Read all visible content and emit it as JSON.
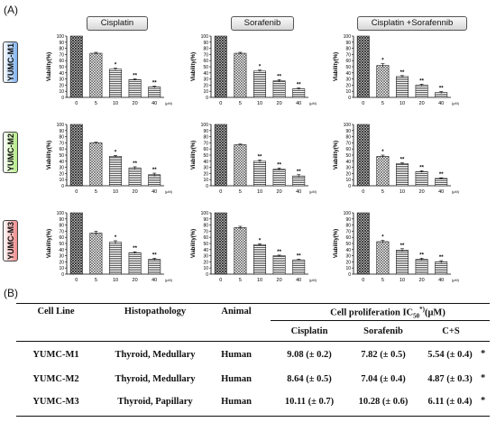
{
  "panel_a_label": "(A)",
  "panel_b_label": "(B)",
  "columns": [
    "Cisplatin",
    "Sorafenib",
    "Cisplatin +Sorafennib"
  ],
  "rows": [
    "YUMC-M1",
    "YUMC-M2",
    "YUMC-M3"
  ],
  "row_colors": [
    "#7fb3f0",
    "#b4ec86",
    "#f08a8a"
  ],
  "chart_data": [
    {
      "type": "bar",
      "row": "YUMC-M1",
      "drug": "Cisplatin",
      "categories": [
        "0",
        "5",
        "10",
        "20",
        "40"
      ],
      "values": [
        100,
        72,
        46,
        29,
        17
      ],
      "errors": [
        0,
        1.5,
        1.5,
        1.5,
        1.5
      ],
      "significance": [
        "",
        "",
        "*",
        "**",
        "**"
      ],
      "ylabel": "Viability(%)",
      "ylim": [
        0,
        100
      ],
      "yticks": [
        0,
        10,
        20,
        30,
        40,
        50,
        60,
        70,
        80,
        90,
        100
      ],
      "unit_label": "(μM)"
    },
    {
      "type": "bar",
      "row": "YUMC-M1",
      "drug": "Sorafenib",
      "categories": [
        "0",
        "5",
        "10",
        "20",
        "40"
      ],
      "values": [
        100,
        72,
        43,
        27,
        14
      ],
      "errors": [
        0,
        1.5,
        1.5,
        2,
        1.5
      ],
      "significance": [
        "",
        "",
        "*",
        "**",
        "**"
      ],
      "ylabel": "Viability(%)",
      "ylim": [
        0,
        100
      ],
      "yticks": [
        0,
        10,
        20,
        30,
        40,
        50,
        60,
        70,
        80,
        90,
        100
      ],
      "unit_label": "(μM)"
    },
    {
      "type": "bar",
      "row": "YUMC-M1",
      "drug": "Cisplatin +Sorafennib",
      "categories": [
        "0",
        "5",
        "10",
        "20",
        "40"
      ],
      "values": [
        100,
        52,
        34,
        20,
        8
      ],
      "errors": [
        0,
        3,
        1.5,
        1.5,
        1.5
      ],
      "significance": [
        "",
        "*",
        "**",
        "**",
        "**"
      ],
      "ylabel": "Viability(%)",
      "ylim": [
        0,
        100
      ],
      "yticks": [
        0,
        10,
        20,
        30,
        40,
        50,
        60,
        70,
        80,
        90,
        100
      ],
      "unit_label": "(μM)"
    },
    {
      "type": "bar",
      "row": "YUMC-M2",
      "drug": "Cisplatin",
      "categories": [
        "0",
        "5",
        "10",
        "20",
        "40"
      ],
      "values": [
        100,
        70,
        48,
        29,
        18
      ],
      "errors": [
        0,
        1,
        1.5,
        2,
        2.5
      ],
      "significance": [
        "",
        "",
        "*",
        "**",
        "**"
      ],
      "ylabel": "Viability(%)",
      "ylim": [
        0,
        100
      ],
      "yticks": [
        0,
        10,
        20,
        30,
        40,
        50,
        60,
        70,
        80,
        90,
        100
      ],
      "unit_label": "(μM)"
    },
    {
      "type": "bar",
      "row": "YUMC-M2",
      "drug": "Sorafenib",
      "categories": [
        "0",
        "5",
        "10",
        "20",
        "40"
      ],
      "values": [
        100,
        67,
        40,
        27,
        16
      ],
      "errors": [
        0,
        1,
        2,
        2,
        2
      ],
      "significance": [
        "",
        "",
        "**",
        "**",
        "**"
      ],
      "ylabel": "Viability(%)",
      "ylim": [
        0,
        100
      ],
      "yticks": [
        0,
        10,
        20,
        30,
        40,
        50,
        60,
        70,
        80,
        90,
        100
      ],
      "unit_label": "(μM)"
    },
    {
      "type": "bar",
      "row": "YUMC-M2",
      "drug": "Cisplatin +Sorafennib",
      "categories": [
        "0",
        "5",
        "10",
        "20",
        "40"
      ],
      "values": [
        100,
        48,
        36,
        23,
        12
      ],
      "errors": [
        0,
        2,
        1.5,
        1.5,
        1
      ],
      "significance": [
        "",
        "*",
        "**",
        "**",
        "**"
      ],
      "ylabel": "Viability(%)",
      "ylim": [
        0,
        100
      ],
      "yticks": [
        0,
        10,
        20,
        30,
        40,
        50,
        60,
        70,
        80,
        90,
        100
      ],
      "unit_label": "(μM)"
    },
    {
      "type": "bar",
      "row": "YUMC-M3",
      "drug": "Cisplatin",
      "categories": [
        "0",
        "5",
        "10",
        "20",
        "40"
      ],
      "values": [
        100,
        67,
        52,
        35,
        24
      ],
      "errors": [
        0,
        3,
        2.5,
        1.5,
        2
      ],
      "significance": [
        "",
        "",
        "*",
        "**",
        "**"
      ],
      "ylabel": "Viability(%)",
      "ylim": [
        0,
        100
      ],
      "yticks": [
        0,
        10,
        20,
        30,
        40,
        50,
        60,
        70,
        80,
        90,
        100
      ],
      "unit_label": "(μM)"
    },
    {
      "type": "bar",
      "row": "YUMC-M3",
      "drug": "Sorafenib",
      "categories": [
        "0",
        "5",
        "10",
        "20",
        "40"
      ],
      "values": [
        100,
        76,
        48,
        30,
        23
      ],
      "errors": [
        0,
        2,
        1.5,
        1,
        1
      ],
      "significance": [
        "",
        "",
        "*",
        "**",
        "**"
      ],
      "ylabel": "Viability(%)",
      "ylim": [
        0,
        100
      ],
      "yticks": [
        0,
        10,
        20,
        30,
        40,
        50,
        60,
        70,
        80,
        90,
        100
      ],
      "unit_label": "(μM)"
    },
    {
      "type": "bar",
      "row": "YUMC-M3",
      "drug": "Cisplatin +Sorafennib",
      "categories": [
        "0",
        "5",
        "10",
        "20",
        "40"
      ],
      "values": [
        100,
        53,
        39,
        24,
        20
      ],
      "errors": [
        0,
        2,
        2.5,
        2,
        2
      ],
      "significance": [
        "",
        "*",
        "**",
        "**",
        "**"
      ],
      "ylabel": "Viability(%)",
      "ylim": [
        0,
        100
      ],
      "yticks": [
        0,
        10,
        20,
        30,
        40,
        50,
        60,
        70,
        80,
        90,
        100
      ],
      "unit_label": "(μM)"
    }
  ],
  "table": {
    "headers": {
      "cell_line": "Cell Line",
      "histopathology": "Histopathology",
      "animal": "Animal",
      "ic50_prefix": "Cell proliferation  IC",
      "ic50_sub": "50",
      "ic50_sup": "*)",
      "ic50_suffix": "(μM)"
    },
    "subheaders": [
      "Cisplatin",
      "Sorafenib",
      "C+S"
    ],
    "rows": [
      {
        "cell_line": "YUMC-M1",
        "histopathology": "Thyroid,  Medullary",
        "animal": "Human",
        "cisplatin": "9.08 (± 0.2)",
        "sorafenib": "7.82 (± 0.5)",
        "cs": "5.54  (± 0.4)",
        "mark": "*"
      },
      {
        "cell_line": "YUMC-M2",
        "histopathology": "Thyroid,  Medullary",
        "animal": "Human",
        "cisplatin": "8.64 (± 0.5)",
        "sorafenib": "7.04 (± 0.4)",
        "cs": "4.87  (± 0.3)",
        "mark": "*"
      },
      {
        "cell_line": "YUMC-M3",
        "histopathology": "Thyroid,  Papillary",
        "animal": "Human",
        "cisplatin": "10.11 (± 0.7)",
        "sorafenib": "10.28 (± 0.6)",
        "cs": "6.11  (± 0.4)",
        "mark": "*"
      }
    ]
  }
}
